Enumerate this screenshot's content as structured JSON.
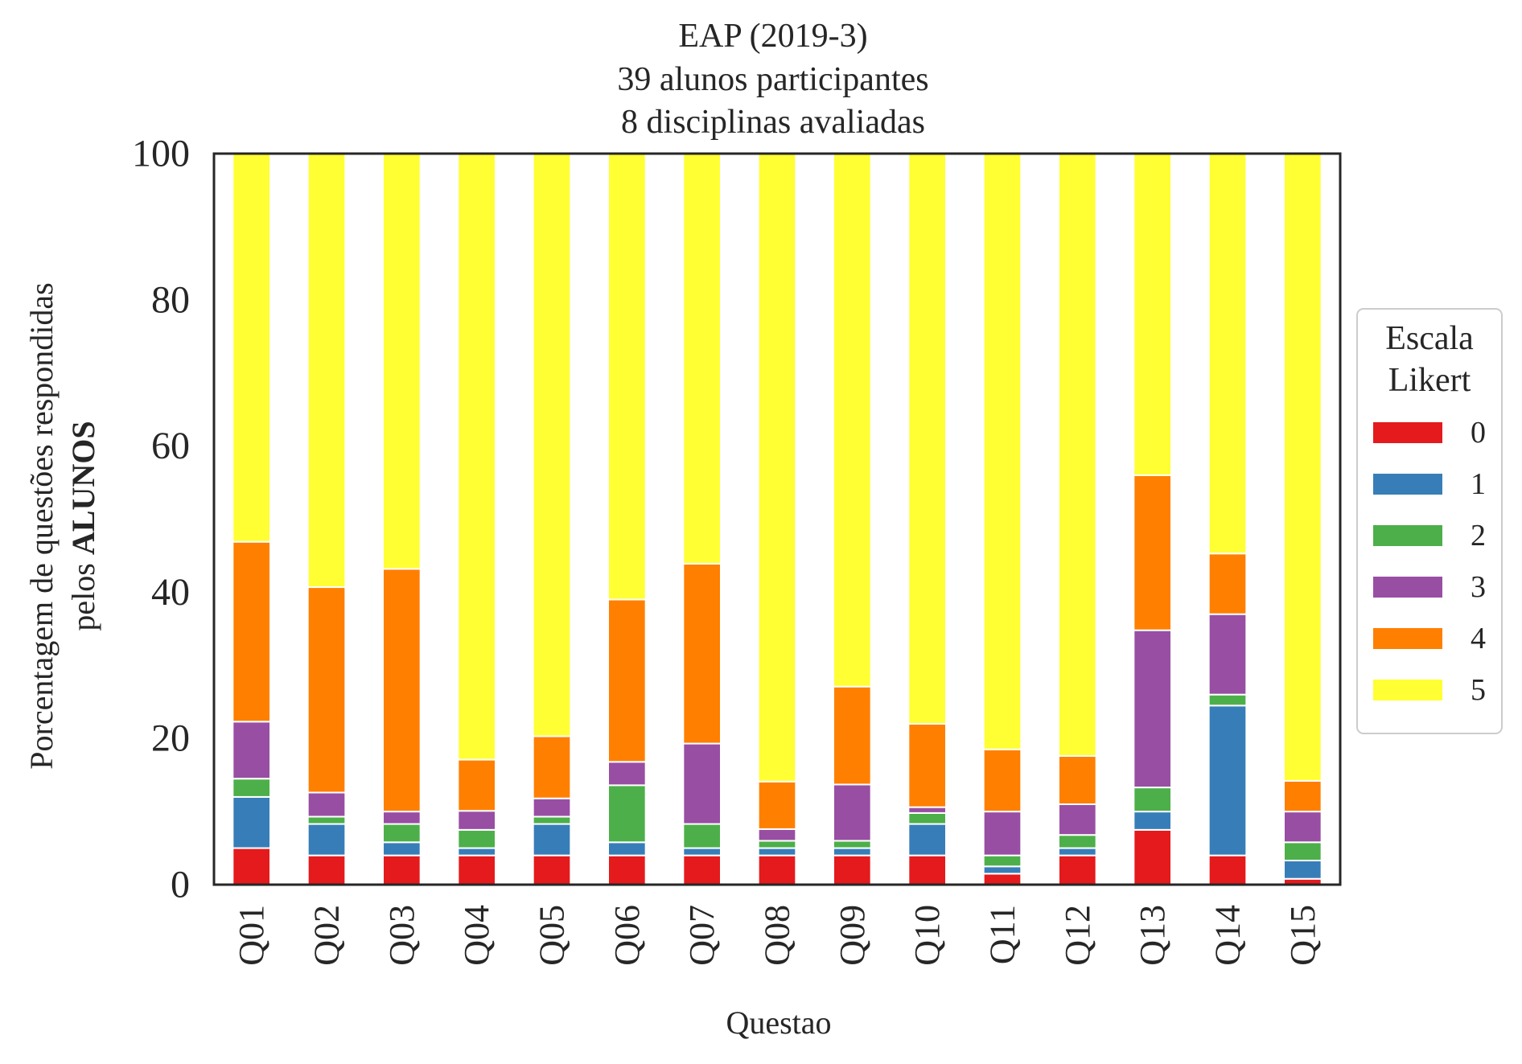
{
  "chart_data": {
    "type": "bar",
    "stacked": true,
    "title": [
      "EAP (2019-3)",
      "39 alunos participantes",
      "8 disciplinas avaliadas"
    ],
    "xlabel": "Questao",
    "ylabel": {
      "line1": "Porcentagem de questões respondidas",
      "line2_prefix": "pelos ",
      "line2_bold": "ALUNOS"
    },
    "ylim": [
      0,
      100
    ],
    "yticks": [
      0,
      20,
      40,
      60,
      80,
      100
    ],
    "ytick_labels": [
      "0",
      "20",
      "40",
      "60",
      "80",
      "100"
    ],
    "grid": false,
    "legend": {
      "title": [
        "Escala",
        "Likert"
      ],
      "placement": "right"
    },
    "categories": [
      "Q01",
      "Q02",
      "Q03",
      "Q04",
      "Q05",
      "Q06",
      "Q07",
      "Q08",
      "Q09",
      "Q10",
      "Q11",
      "Q12",
      "Q13",
      "Q14",
      "Q15"
    ],
    "series": [
      {
        "name": "0",
        "color": "#e41a1c",
        "values": [
          5.0,
          4.0,
          4.0,
          4.0,
          4.0,
          4.0,
          4.0,
          4.0,
          4.0,
          4.0,
          1.5,
          4.0,
          7.5,
          4.0,
          0.8
        ]
      },
      {
        "name": "1",
        "color": "#377eb8",
        "values": [
          7.0,
          4.3,
          1.8,
          1.0,
          4.3,
          1.8,
          1.0,
          1.0,
          1.0,
          4.3,
          1.0,
          1.0,
          2.5,
          20.5,
          2.5
        ]
      },
      {
        "name": "2",
        "color": "#4daf4a",
        "values": [
          2.5,
          1.0,
          2.5,
          2.5,
          1.0,
          7.8,
          3.3,
          1.0,
          1.0,
          1.5,
          1.5,
          1.8,
          3.3,
          1.5,
          2.5
        ]
      },
      {
        "name": "3",
        "color": "#984ea3",
        "values": [
          7.8,
          3.3,
          1.7,
          2.6,
          2.5,
          3.2,
          11.0,
          1.6,
          7.7,
          0.8,
          6.0,
          4.2,
          21.5,
          11.0,
          4.2
        ]
      },
      {
        "name": "4",
        "color": "#ff7f00",
        "values": [
          24.6,
          28.1,
          33.2,
          7.0,
          8.5,
          22.2,
          24.6,
          6.5,
          13.4,
          11.4,
          8.5,
          6.6,
          21.2,
          8.3,
          4.2
        ]
      },
      {
        "name": "5",
        "color": "#ffff33",
        "values": [
          53.1,
          59.3,
          56.8,
          82.9,
          79.7,
          61.0,
          56.1,
          85.9,
          72.9,
          78.0,
          81.5,
          82.4,
          44.0,
          54.7,
          85.8
        ]
      }
    ]
  }
}
